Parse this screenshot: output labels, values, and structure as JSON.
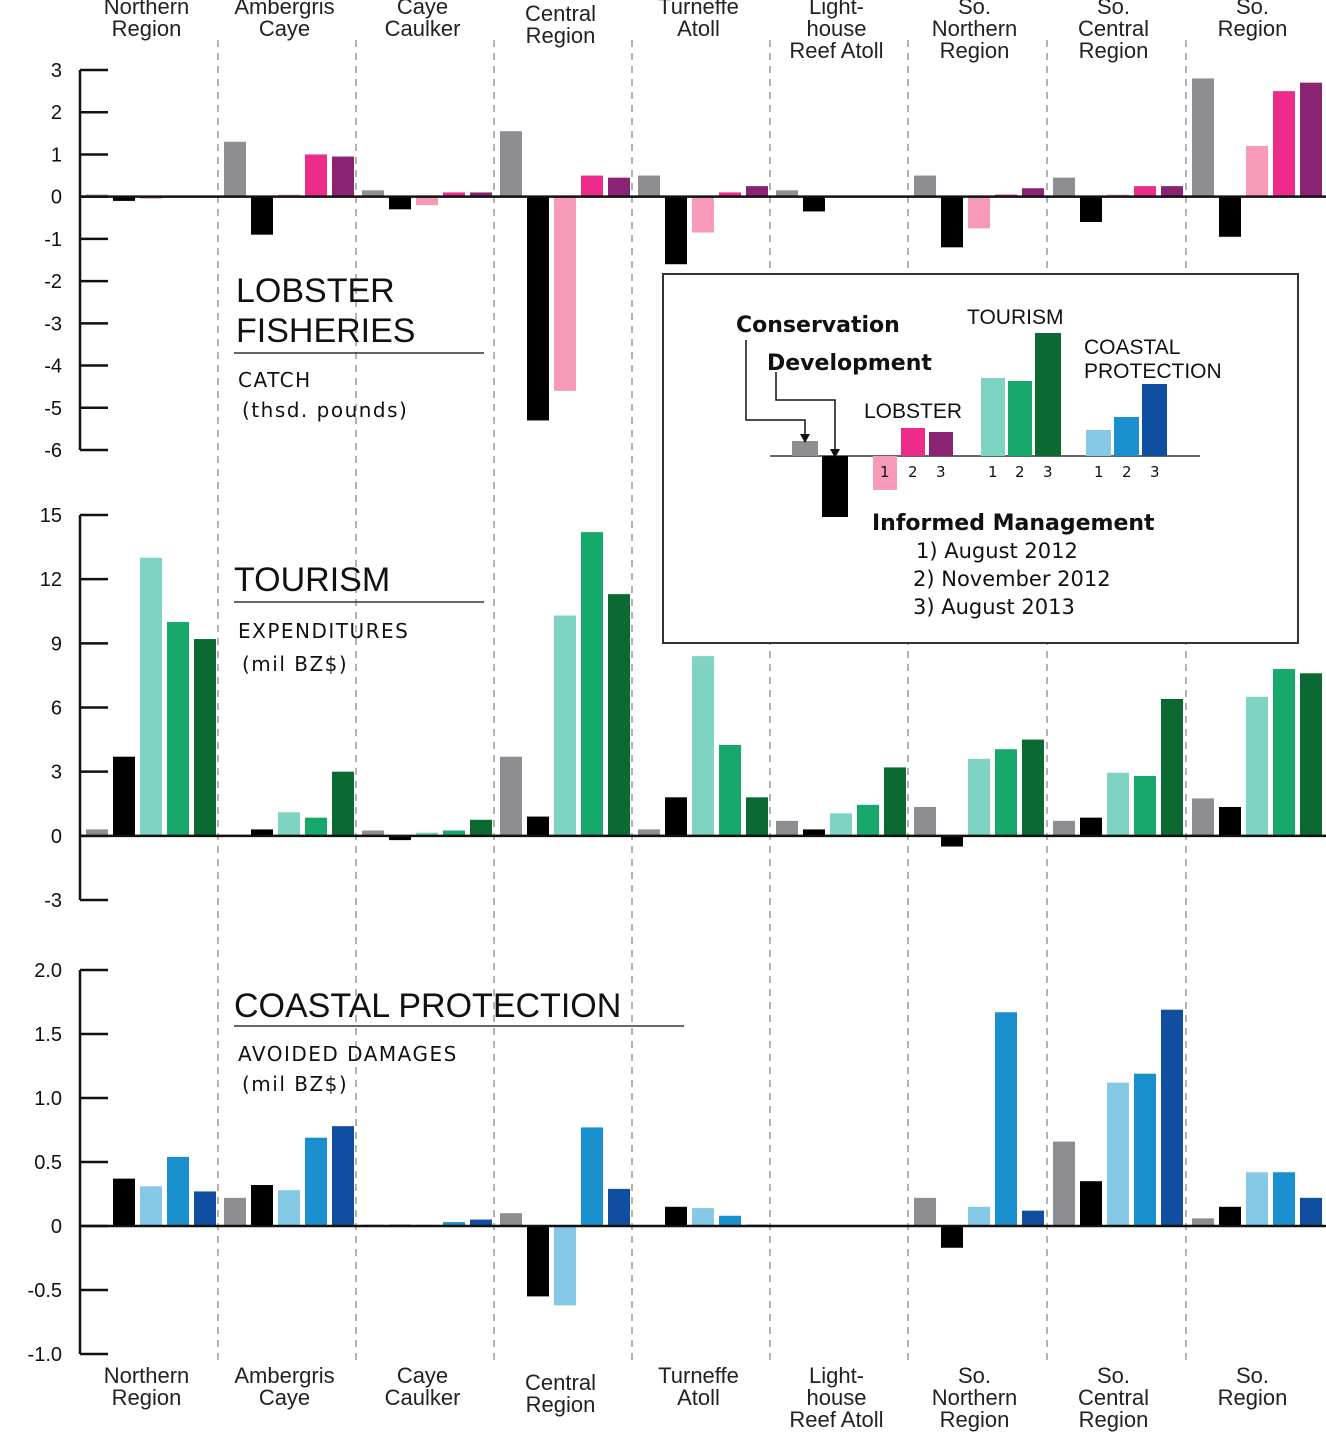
{
  "regions": [
    [
      "Northern",
      "Region"
    ],
    [
      "Ambergris",
      "Caye"
    ],
    [
      "Caye",
      "Caulker"
    ],
    [
      "Central",
      "Region"
    ],
    [
      "Turneffe",
      "Atoll"
    ],
    [
      "Light-",
      "house",
      "Reef Atoll"
    ],
    [
      "So.",
      "Northern",
      "Region"
    ],
    [
      "So.",
      "Central",
      "Region"
    ],
    [
      "So.",
      "Region"
    ]
  ],
  "legend": {
    "conservation": "Conservation",
    "development": "Development",
    "lobster": "LOBSTER",
    "tourism": "TOURISM",
    "coastal_line1": "COASTAL",
    "coastal_line2": "PROTECTION",
    "numbers": [
      "1",
      "2",
      "3"
    ],
    "informed_management": "Informed Management",
    "dates": [
      "1) August 2012",
      "2) November 2012",
      "3) August 2013"
    ]
  },
  "colors": {
    "conservation": "#8e8e92",
    "development": "#000000",
    "lobster": [
      "#f79ab8",
      "#ec2b8a",
      "#8a2472"
    ],
    "tourism": [
      "#7fd3c2",
      "#17a86c",
      "#0a6a32"
    ],
    "coastal": [
      "#86c9e6",
      "#1a8fce",
      "#0f4ea0"
    ]
  },
  "chart_data": [
    {
      "type": "bar",
      "title": "LOBSTER FISHERIES",
      "subtitle": "CATCH",
      "units": "(thsd. pounds)",
      "categories": [
        "Northern Region",
        "Ambergris Caye",
        "Caye Caulker",
        "Central Region",
        "Turneffe Atoll",
        "Light-house Reef Atoll",
        "So. Northern Region",
        "So. Central Region",
        "So. Region"
      ],
      "ylim": [
        -6,
        3
      ],
      "yticks": [
        "3",
        "2",
        "1",
        "0",
        "-1",
        "-2",
        "-3",
        "-4",
        "-5",
        "-6"
      ],
      "series": [
        {
          "name": "Conservation",
          "values": [
            0.05,
            1.3,
            0.15,
            1.55,
            0.5,
            0.15,
            0.5,
            0.45,
            2.8
          ]
        },
        {
          "name": "Development",
          "values": [
            -0.1,
            -0.9,
            -0.3,
            -5.3,
            -1.6,
            -0.35,
            -1.2,
            -0.6,
            -0.95
          ]
        },
        {
          "name": "1) August 2012",
          "values": [
            -0.05,
            0.05,
            -0.2,
            -4.6,
            -0.85,
            0,
            -0.75,
            0.05,
            1.2
          ]
        },
        {
          "name": "2) November 2012",
          "values": [
            0,
            1.0,
            0.1,
            0.5,
            0.1,
            0,
            0.05,
            0.25,
            2.5
          ]
        },
        {
          "name": "3) August 2013",
          "values": [
            0,
            0.95,
            0.1,
            0.45,
            0.25,
            0,
            0.2,
            0.25,
            2.7
          ]
        }
      ]
    },
    {
      "type": "bar",
      "title": "TOURISM",
      "subtitle": "EXPENDITURES",
      "units": "(mil BZ$)",
      "categories": [
        "Northern Region",
        "Ambergris Caye",
        "Caye Caulker",
        "Central Region",
        "Turneffe Atoll",
        "Light-house Reef Atoll",
        "So. Northern Region",
        "So. Central Region",
        "So. Region"
      ],
      "ylim": [
        -3,
        15
      ],
      "yticks": [
        "15",
        "12",
        "9",
        "6",
        "3",
        "0",
        "-3"
      ],
      "series": [
        {
          "name": "Conservation",
          "values": [
            0.3,
            0.05,
            0.25,
            3.7,
            0.3,
            0.7,
            1.35,
            0.7,
            1.75
          ]
        },
        {
          "name": "Development",
          "values": [
            3.7,
            0.3,
            -0.2,
            0.9,
            1.8,
            0.3,
            -0.5,
            0.85,
            1.35
          ]
        },
        {
          "name": "1) August 2012",
          "values": [
            13.0,
            1.1,
            0.15,
            10.3,
            8.4,
            1.05,
            3.6,
            2.95,
            6.5
          ]
        },
        {
          "name": "2) November 2012",
          "values": [
            10.0,
            0.85,
            0.25,
            14.2,
            4.25,
            1.45,
            4.05,
            2.8,
            7.8
          ]
        },
        {
          "name": "3) August 2013",
          "values": [
            9.2,
            3.0,
            0.75,
            11.3,
            1.8,
            3.2,
            4.5,
            6.4,
            7.6
          ]
        }
      ]
    },
    {
      "type": "bar",
      "title": "COASTAL PROTECTION",
      "subtitle": "AVOIDED DAMAGES",
      "units": "(mil BZ$)",
      "categories": [
        "Northern Region",
        "Ambergris Caye",
        "Caye Caulker",
        "Central Region",
        "Turneffe Atoll",
        "Light-house Reef Atoll",
        "So. Northern Region",
        "So. Central Region",
        "So. Region"
      ],
      "ylim": [
        -1.0,
        2.0
      ],
      "yticks": [
        "2.0",
        "1.5",
        "1.0",
        "0.5",
        "0",
        "-0.5",
        "-1.0"
      ],
      "series": [
        {
          "name": "Conservation",
          "values": [
            0,
            0.22,
            0.01,
            0.1,
            0,
            0,
            0.22,
            0.66,
            0.06
          ]
        },
        {
          "name": "Development",
          "values": [
            0.37,
            0.32,
            0.01,
            -0.55,
            0.15,
            0,
            -0.17,
            0.35,
            0.15
          ]
        },
        {
          "name": "1) August 2012",
          "values": [
            0.31,
            0.28,
            0.01,
            -0.62,
            0.14,
            0,
            0.15,
            1.12,
            0.42
          ]
        },
        {
          "name": "2) November 2012",
          "values": [
            0.54,
            0.69,
            0.03,
            0.77,
            0.08,
            0,
            1.67,
            1.19,
            0.42
          ]
        },
        {
          "name": "3) August 2013",
          "values": [
            0.27,
            0.78,
            0.05,
            0.29,
            0.01,
            0,
            0.12,
            1.69,
            0.22
          ]
        }
      ]
    }
  ]
}
